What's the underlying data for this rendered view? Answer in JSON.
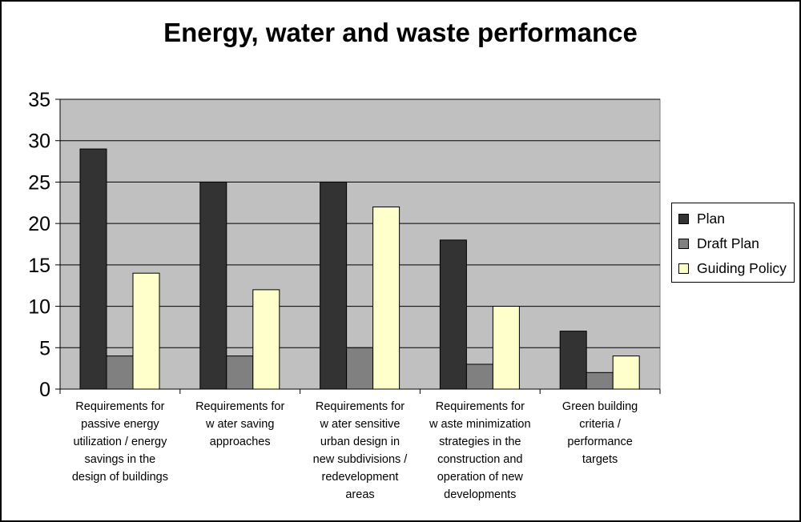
{
  "chart_data": {
    "type": "bar",
    "title": "Energy, water and waste performance",
    "xlabel": "",
    "ylabel": "",
    "ylim": [
      0,
      35
    ],
    "yticks": [
      0,
      5,
      10,
      15,
      20,
      25,
      30,
      35
    ],
    "grid": true,
    "legend_position": "right",
    "categories": [
      "Requirements for passive energy utilization / energy savings in the design of buildings",
      "Requirements for water saving approaches",
      "Requirements for water sensitive urban design in new subdivisions / redevelopment areas",
      "Requirements for waste minimization strategies in the construction and operation of new developments",
      "Green building criteria / performance targets"
    ],
    "category_lines": [
      [
        "Requirements for",
        "passive energy",
        "utilization / energy",
        "savings in the",
        "design of buildings"
      ],
      [
        "Requirements for",
        "w ater saving",
        "approaches"
      ],
      [
        "Requirements for",
        "w ater sensitive",
        "urban design in",
        "new subdivisions /",
        "redevelopment",
        "areas"
      ],
      [
        "Requirements for",
        "w aste minimization",
        "strategies in the",
        "construction and",
        "operation of new",
        "developments"
      ],
      [
        "Green building",
        "criteria /",
        "performance",
        "targets"
      ]
    ],
    "series": [
      {
        "name": "Plan",
        "color": "#333333",
        "values": [
          29,
          25,
          25,
          18,
          7
        ]
      },
      {
        "name": "Draft Plan",
        "color": "#808080",
        "values": [
          4,
          4,
          5,
          3,
          2
        ]
      },
      {
        "name": "Guiding Policy",
        "color": "#ffffcc",
        "values": [
          14,
          12,
          22,
          10,
          4
        ]
      }
    ],
    "plot_background": "#c0c0c0"
  }
}
